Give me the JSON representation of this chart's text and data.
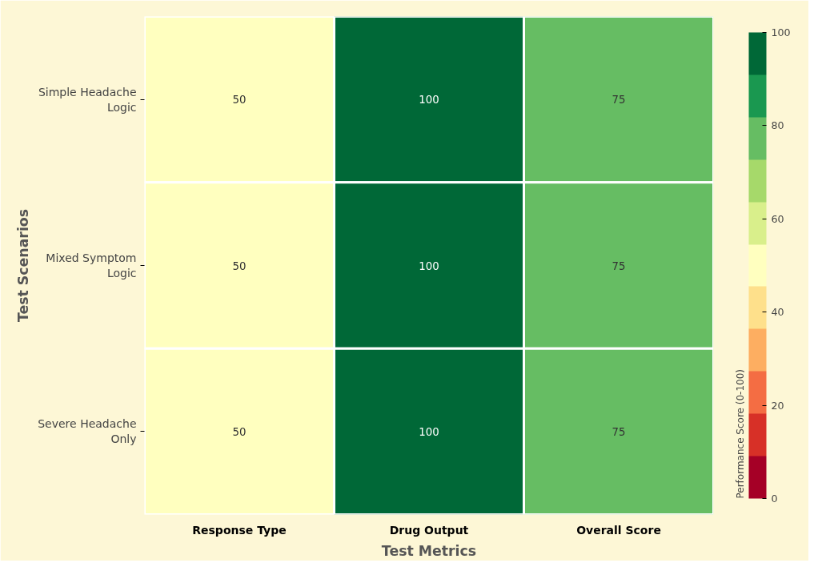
{
  "chart_data": {
    "type": "heatmap",
    "xlabel": "Test Metrics",
    "ylabel": "Test Scenarios",
    "clabel": "Performance Score (0-100)",
    "categories": [
      "Response Type",
      "Drug Output",
      "Overall Score"
    ],
    "y_categories": [
      "Simple Headache Logic",
      "Mixed Symptom Logic",
      "Severe Headache Only"
    ],
    "cells": [
      [
        50,
        100,
        75
      ],
      [
        50,
        100,
        75
      ],
      [
        50,
        100,
        75
      ]
    ],
    "data_labels": true,
    "clim": [
      0,
      100
    ],
    "cticks": [
      0,
      20,
      40,
      60,
      80,
      100
    ]
  }
}
